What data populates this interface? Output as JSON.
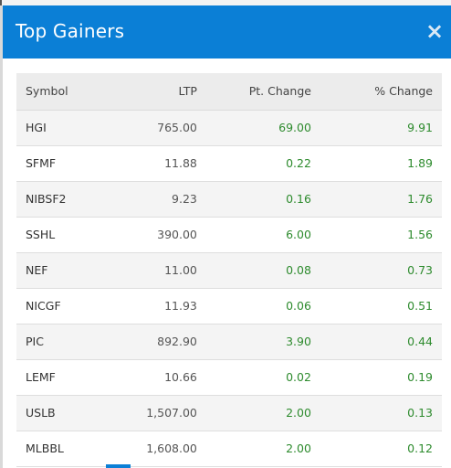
{
  "modal": {
    "title": "Top Gainers",
    "close_label": "×"
  },
  "table": {
    "headers": {
      "symbol": "Symbol",
      "ltp": "LTP",
      "pt_change": "Pt. Change",
      "pct_change": "% Change"
    },
    "rows": [
      {
        "symbol": "HGI",
        "ltp": "765.00",
        "pt_change": "69.00",
        "pct_change": "9.91"
      },
      {
        "symbol": "SFMF",
        "ltp": "11.88",
        "pt_change": "0.22",
        "pct_change": "1.89"
      },
      {
        "symbol": "NIBSF2",
        "ltp": "9.23",
        "pt_change": "0.16",
        "pct_change": "1.76"
      },
      {
        "symbol": "SSHL",
        "ltp": "390.00",
        "pt_change": "6.00",
        "pct_change": "1.56"
      },
      {
        "symbol": "NEF",
        "ltp": "11.00",
        "pt_change": "0.08",
        "pct_change": "0.73"
      },
      {
        "symbol": "NICGF",
        "ltp": "11.93",
        "pt_change": "0.06",
        "pct_change": "0.51"
      },
      {
        "symbol": "PIC",
        "ltp": "892.90",
        "pt_change": "3.90",
        "pct_change": "0.44"
      },
      {
        "symbol": "LEMF",
        "ltp": "10.66",
        "pt_change": "0.02",
        "pct_change": "0.19"
      },
      {
        "symbol": "USLB",
        "ltp": "1,507.00",
        "pt_change": "2.00",
        "pct_change": "0.13"
      },
      {
        "symbol": "MLBBL",
        "ltp": "1,608.00",
        "pt_change": "2.00",
        "pct_change": "0.12"
      }
    ]
  },
  "colors": {
    "header_bg": "#0b7fd6",
    "positive": "#2e8b2e"
  }
}
